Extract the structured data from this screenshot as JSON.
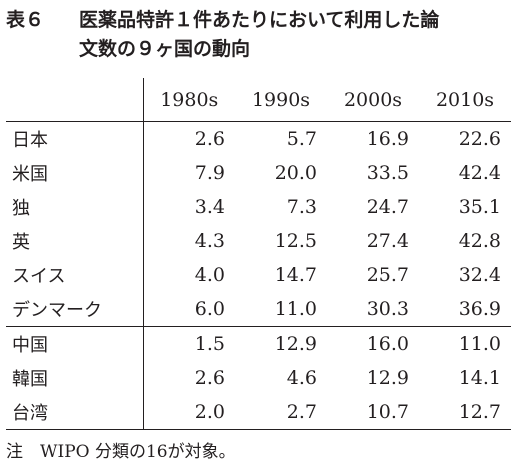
{
  "caption": {
    "label": "表６",
    "line1": "医薬品特許１件あたりにおいて利用した論",
    "line2": "文数の９ヶ国の動向"
  },
  "table": {
    "corner": "",
    "columns": [
      "1980s",
      "1990s",
      "2000s",
      "2010s"
    ],
    "rows": [
      {
        "name": "日本",
        "values": [
          "2.6",
          "5.7",
          "16.9",
          "22.6"
        ]
      },
      {
        "name": "米国",
        "values": [
          "7.9",
          "20.0",
          "33.5",
          "42.4"
        ]
      },
      {
        "name": "独",
        "values": [
          "3.4",
          "7.3",
          "24.7",
          "35.1"
        ]
      },
      {
        "name": "英",
        "values": [
          "4.3",
          "12.5",
          "27.4",
          "42.8"
        ]
      },
      {
        "name": "スイス",
        "values": [
          "4.0",
          "14.7",
          "25.7",
          "32.4"
        ]
      },
      {
        "name": "デンマーク",
        "values": [
          "6.0",
          "11.0",
          "30.3",
          "36.9"
        ]
      },
      {
        "name": "中国",
        "values": [
          "1.5",
          "12.9",
          "16.0",
          "11.0"
        ]
      },
      {
        "name": "韓国",
        "values": [
          "2.6",
          "4.6",
          "12.9",
          "14.1"
        ]
      },
      {
        "name": "台湾",
        "values": [
          "2.0",
          "2.7",
          "10.7",
          "12.7"
        ]
      }
    ]
  },
  "note": "注　WIPO 分類の16が対象。"
}
